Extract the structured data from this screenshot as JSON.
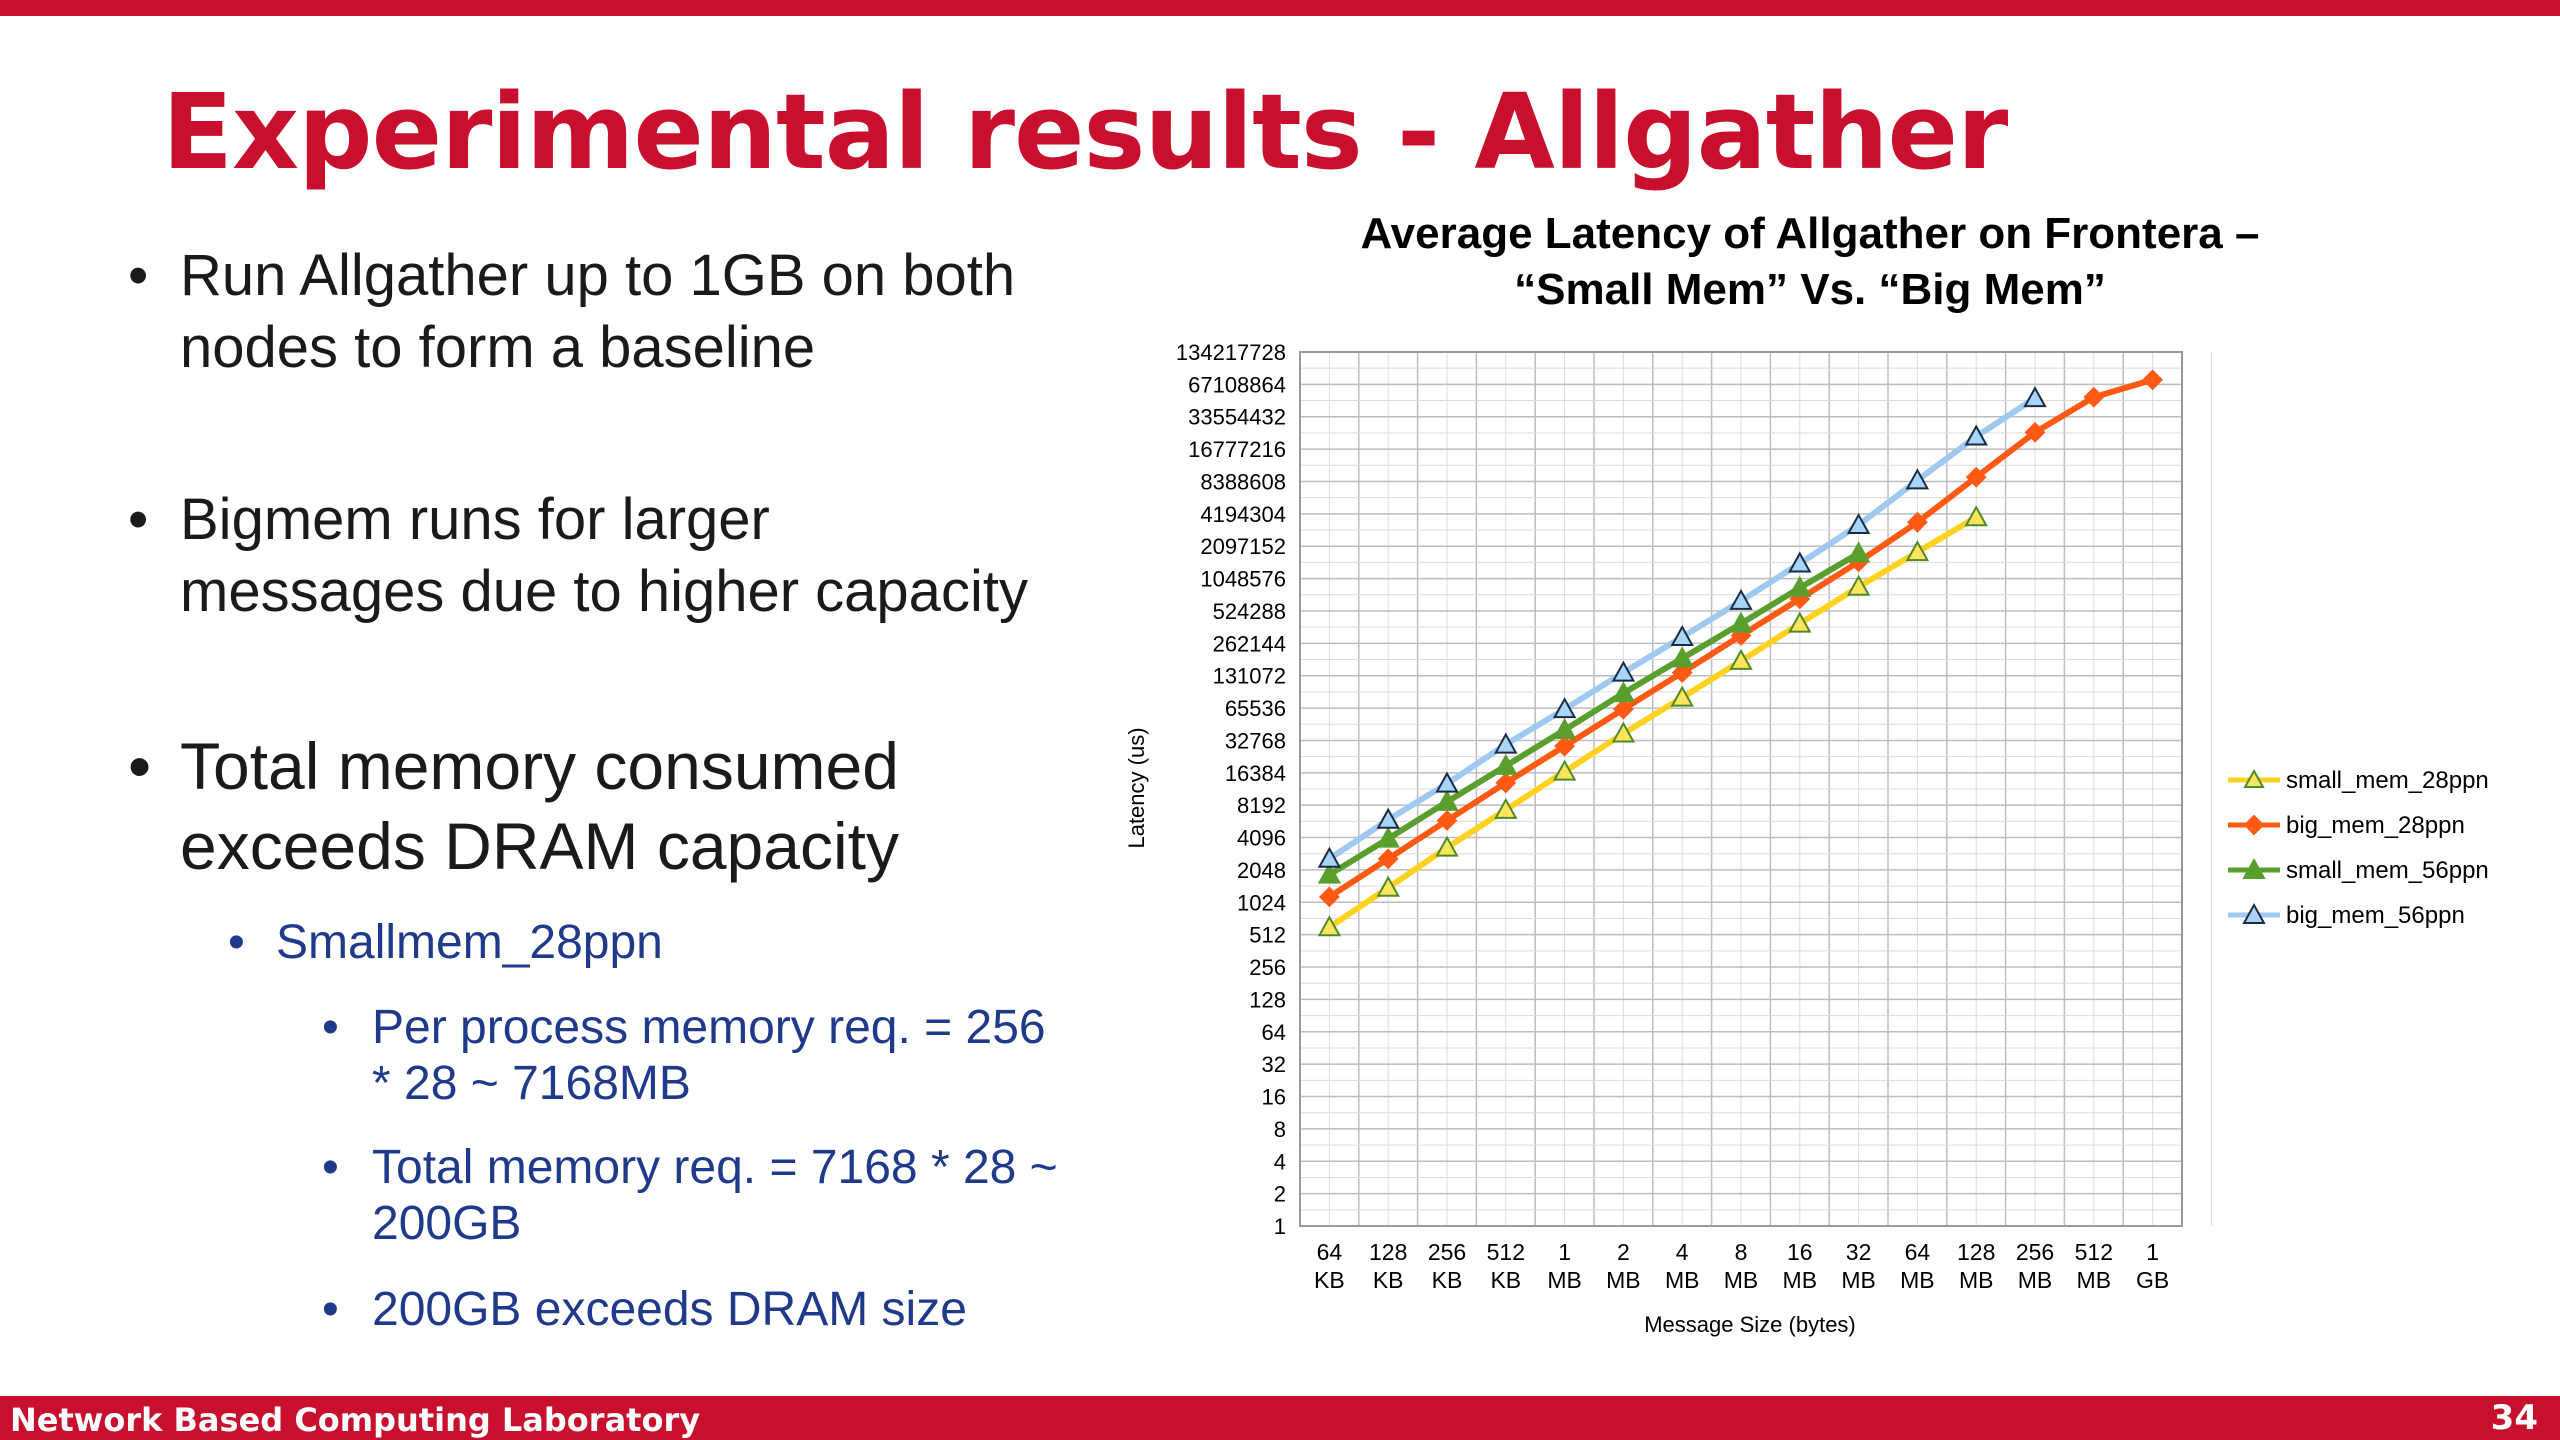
{
  "slide": {
    "title": "Experimental results - Allgather",
    "footer": "Network Based Computing Laboratory",
    "page_number": "34",
    "accent_color": "#c8102e",
    "subbullet_color": "#1f3a8a"
  },
  "bullets": {
    "b1": "Run Allgather up to 1GB on both nodes to form a baseline",
    "b2": "Bigmem runs for larger messages due to higher capacity",
    "b3": "Total memory consumed exceeds DRAM capacity",
    "b3_sub": "Smallmem_28ppn",
    "b3_sub_items": [
      "Per process memory req. = 256 * 28 ~ 7168MB",
      "Total memory req. = 7168 * 28 ~ 200GB",
      "200GB exceeds DRAM size"
    ]
  },
  "chart_data": {
    "type": "line",
    "title": "Average Latency of Allgather on Frontera – “Small Mem” Vs. “Big Mem”",
    "xlabel": "Message Size (bytes)",
    "ylabel": "Latency (us)",
    "y_scale": "log2",
    "ylim": [
      1,
      134217728
    ],
    "y_ticks": [
      "134217728",
      "67108864",
      "33554432",
      "16777216",
      "8388608",
      "4194304",
      "2097152",
      "1048576",
      "524288",
      "262144",
      "131072",
      "65536",
      "32768",
      "16384",
      "8192",
      "4096",
      "2048",
      "1024",
      "512",
      "256",
      "128",
      "64",
      "32",
      "16",
      "8",
      "4",
      "2",
      "1"
    ],
    "categories": [
      "64 KB",
      "128 KB",
      "256 KB",
      "512 KB",
      "1 MB",
      "2 MB",
      "4 MB",
      "8 MB",
      "16 MB",
      "32 MB",
      "64 MB",
      "128 MB",
      "256 MB",
      "512 MB",
      "1 GB"
    ],
    "grid": true,
    "legend_position": "right",
    "series": [
      {
        "name": "small_mem_28ppn",
        "color": "#ffd21f",
        "marker": "triangle-open",
        "values": [
          600,
          1400,
          3300,
          7400,
          16800,
          38000,
          82000,
          180000,
          400000,
          880000,
          1850000,
          3900000,
          null,
          null,
          null
        ]
      },
      {
        "name": "big_mem_28ppn",
        "color": "#ff5a14",
        "marker": "diamond",
        "values": [
          1150,
          2600,
          5900,
          13200,
          29000,
          64000,
          140000,
          310000,
          680000,
          1500000,
          3500000,
          9200000,
          24000000,
          51000000,
          74000000
        ]
      },
      {
        "name": "small_mem_56ppn",
        "color": "#5a9e2d",
        "marker": "triangle",
        "values": [
          1850,
          4000,
          8800,
          19000,
          41000,
          90000,
          190000,
          400000,
          860000,
          1800000,
          null,
          null,
          null,
          null,
          null
        ]
      },
      {
        "name": "big_mem_56ppn",
        "color": "#9fc9f0",
        "marker": "triangle-open",
        "values": [
          2600,
          6000,
          13000,
          30000,
          64000,
          140000,
          300000,
          650000,
          1450000,
          3300000,
          8600000,
          22000000,
          50000000,
          null,
          null
        ]
      }
    ]
  }
}
